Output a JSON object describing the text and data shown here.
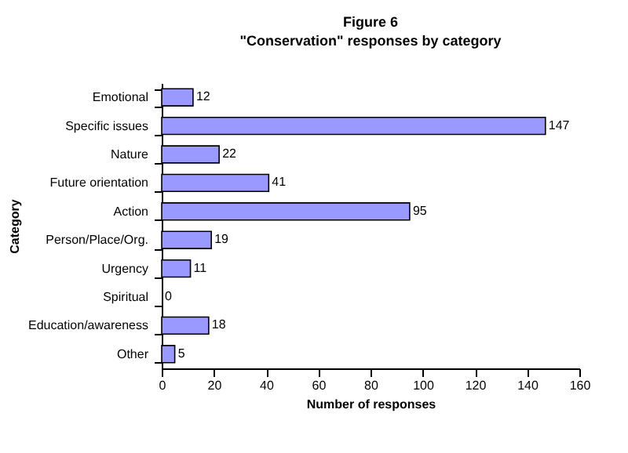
{
  "chart_data": {
    "type": "bar",
    "orientation": "horizontal",
    "title": "Figure 6",
    "subtitle": "\"Conservation\" responses by category",
    "xlabel": "Number of responses",
    "ylabel": "Category",
    "categories": [
      "Emotional",
      "Specific issues",
      "Nature",
      "Future orientation",
      "Action",
      "Person/Place/Org.",
      "Urgency",
      "Spiritual",
      "Education/awareness",
      "Other"
    ],
    "values": [
      12,
      147,
      22,
      41,
      95,
      19,
      11,
      0,
      18,
      5
    ],
    "color": "#9999ff",
    "xlim": [
      0,
      160
    ],
    "xticks": [
      0,
      20,
      40,
      60,
      80,
      100,
      120,
      140,
      160
    ],
    "data_labels": true,
    "grid": false,
    "legend": false
  }
}
